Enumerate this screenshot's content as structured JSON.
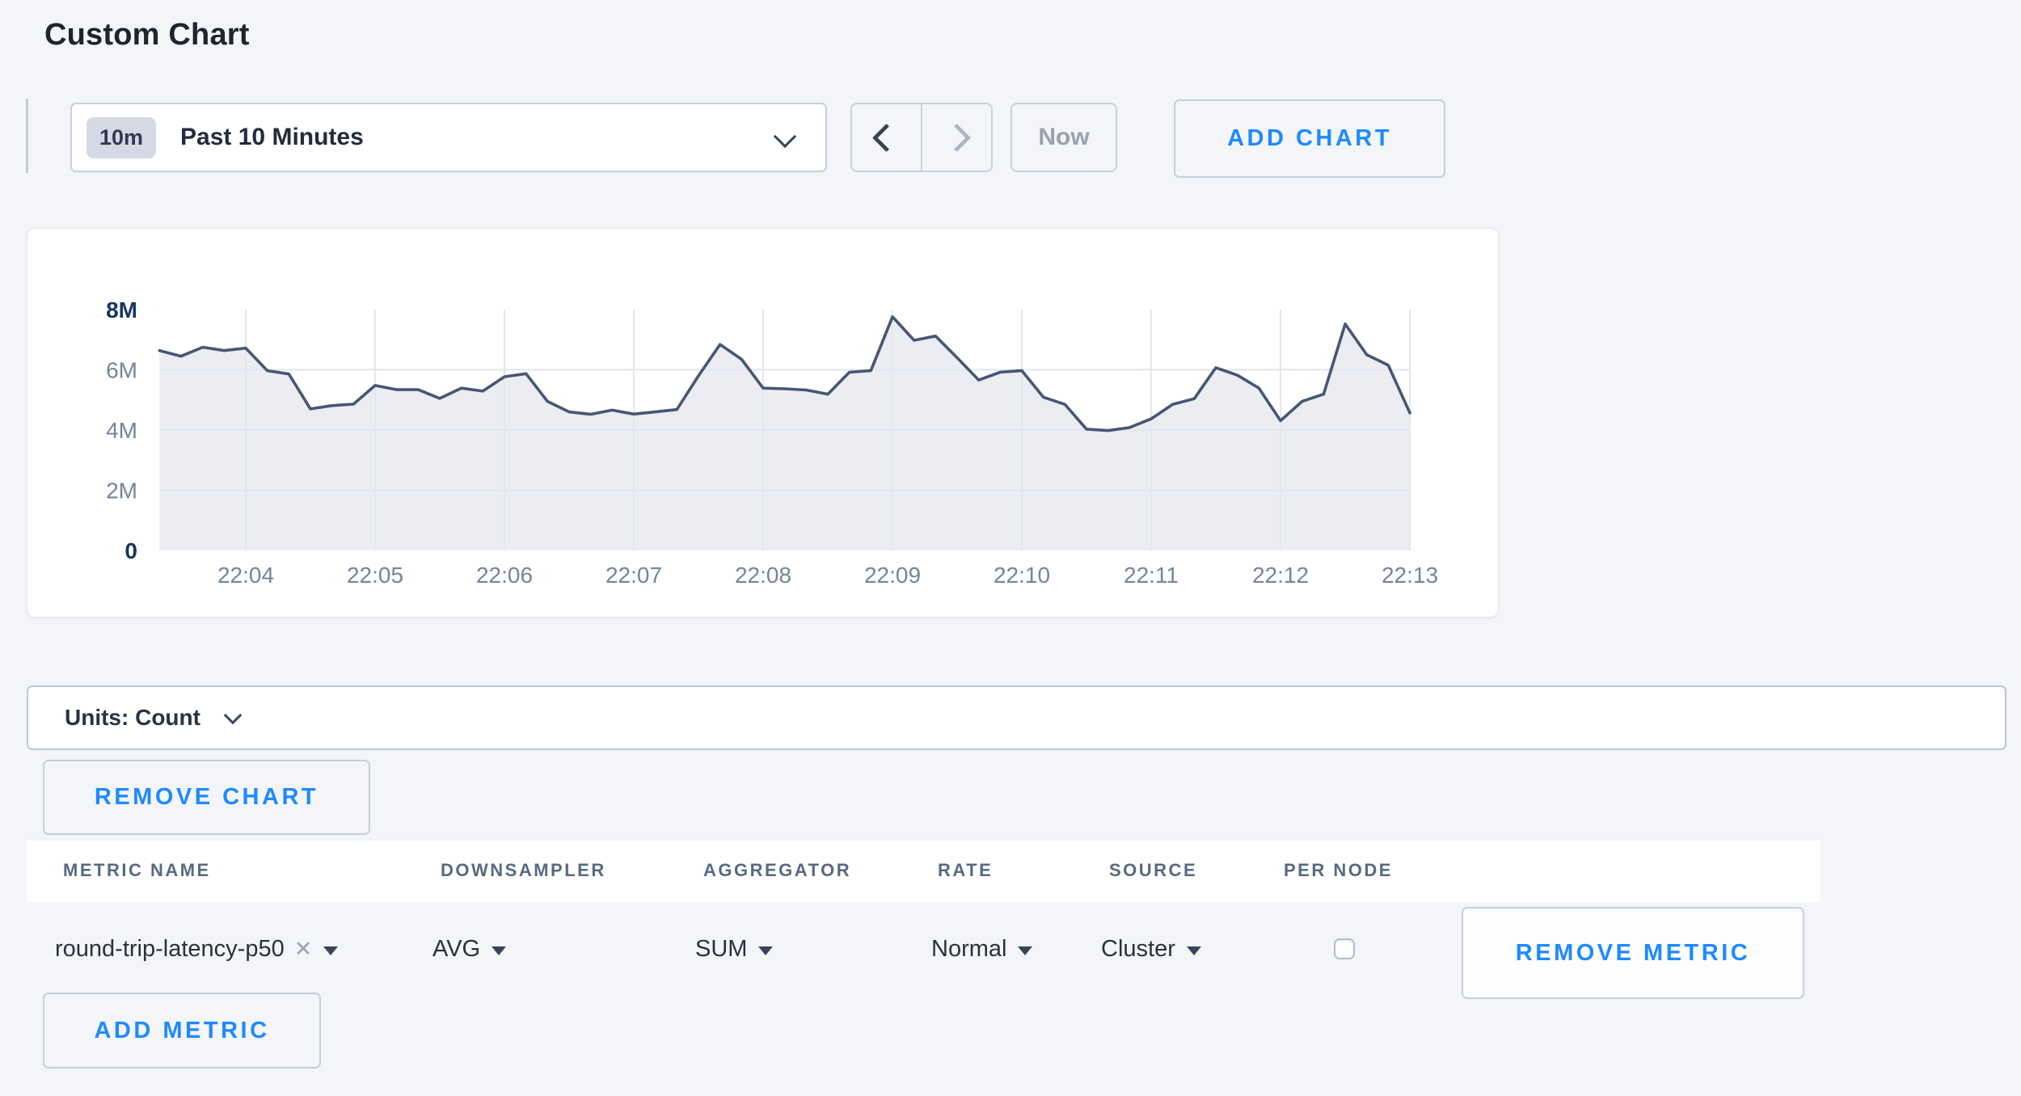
{
  "page": {
    "title": "Custom Chart"
  },
  "toolbar": {
    "time_window_badge": "10m",
    "time_window_label": "Past 10 Minutes",
    "now_label": "Now",
    "add_chart_label": "ADD CHART"
  },
  "colors": {
    "accent_blue": "#1e8aff",
    "chart_line": "#475673",
    "chart_fill": "#ecedf2",
    "gridline": "#e2e6ee",
    "axis_bold_label": "#16365f",
    "axis_muted_label": "#76839e",
    "page_background": "#f4f5f9"
  },
  "chart_data": {
    "type": "area",
    "title": "",
    "xlabel": "",
    "ylabel": "",
    "unit": "count",
    "start_time": "22:03:20",
    "interval_seconds": 10,
    "x_tick_labels": [
      "22:04",
      "22:05",
      "22:06",
      "22:07",
      "22:08",
      "22:09",
      "22:10",
      "22:11",
      "22:12",
      "22:13"
    ],
    "y_tick_labels": [
      "0",
      "2M",
      "4M",
      "6M",
      "8M"
    ],
    "y_tick_values_millions": [
      0,
      2,
      4,
      6,
      8
    ],
    "ylim_millions": [
      0,
      8
    ],
    "grid": true,
    "legend": "none",
    "series_name": "round-trip-latency-p50 (AVG, SUM of Cluster)",
    "values_millions": [
      6.64,
      6.45,
      6.75,
      6.64,
      6.72,
      5.97,
      5.86,
      4.7,
      4.81,
      4.86,
      5.48,
      5.34,
      5.34,
      5.05,
      5.39,
      5.29,
      5.77,
      5.87,
      4.95,
      4.6,
      4.52,
      4.66,
      4.53,
      4.6,
      4.68,
      5.8,
      6.84,
      6.35,
      5.39,
      5.37,
      5.33,
      5.19,
      5.92,
      5.97,
      7.76,
      6.98,
      7.12,
      6.4,
      5.66,
      5.92,
      5.97,
      5.09,
      4.85,
      4.03,
      3.98,
      4.08,
      4.37,
      4.85,
      5.04,
      6.07,
      5.82,
      5.39,
      4.31,
      4.95,
      5.19,
      7.52,
      6.5,
      6.15,
      4.57
    ]
  },
  "units_bar": {
    "label": "Units: Count"
  },
  "chart_actions": {
    "remove_chart_label": "REMOVE CHART"
  },
  "metrics_table": {
    "columns": [
      "METRIC NAME",
      "DOWNSAMPLER",
      "AGGREGATOR",
      "RATE",
      "SOURCE",
      "PER NODE"
    ],
    "rows": [
      {
        "metric_name": "round-trip-latency-p50",
        "downsampler": "AVG",
        "aggregator": "SUM",
        "rate": "Normal",
        "source": "Cluster",
        "per_node_checked": false,
        "remove_label": "REMOVE METRIC"
      }
    ],
    "add_metric_label": "ADD METRIC"
  }
}
